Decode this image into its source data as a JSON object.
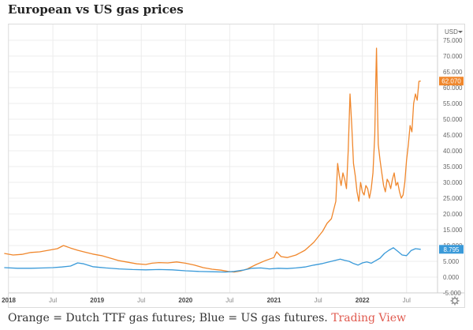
{
  "heading": "European vs US gas prices",
  "caption": {
    "text": "Orange = Dutch TTF gas futures; Blue = US gas futures.",
    "link": "Trading View"
  },
  "colors": {
    "orange": "#f0872c",
    "blue": "#3a9ad9",
    "grid": "#ececec",
    "axis_text": "#666666"
  },
  "icons": {
    "settings": "gear-icon",
    "currency_menu": "chevron-down-icon"
  },
  "chart_data": {
    "type": "line",
    "currency_label": "USD",
    "ylim": [
      -5,
      80
    ],
    "y_ticks": [
      {
        "value": 75,
        "label": "75.000"
      },
      {
        "value": 70,
        "label": "70.000"
      },
      {
        "value": 65,
        "label": "65.000"
      },
      {
        "value": 60,
        "label": "60.000"
      },
      {
        "value": 55,
        "label": "55.000"
      },
      {
        "value": 50,
        "label": "50.000"
      },
      {
        "value": 45,
        "label": "45.000"
      },
      {
        "value": 40,
        "label": "40.000"
      },
      {
        "value": 35,
        "label": "35.000"
      },
      {
        "value": 30,
        "label": "30.000"
      },
      {
        "value": 25,
        "label": "25.000"
      },
      {
        "value": 20,
        "label": "20.000"
      },
      {
        "value": 15,
        "label": "15.000"
      },
      {
        "value": 10,
        "label": "10.000"
      },
      {
        "value": 5,
        "label": "5.000"
      },
      {
        "value": 0,
        "label": "0.000"
      },
      {
        "value": -5,
        "label": "-5.000"
      }
    ],
    "xlim": [
      2018.0,
      2022.85
    ],
    "x_ticks": [
      {
        "value": 2018.0,
        "label": "2018",
        "bold": true
      },
      {
        "value": 2018.5,
        "label": "Jul",
        "bold": false
      },
      {
        "value": 2019.0,
        "label": "2019",
        "bold": true
      },
      {
        "value": 2019.5,
        "label": "Jul",
        "bold": false
      },
      {
        "value": 2020.0,
        "label": "2020",
        "bold": true
      },
      {
        "value": 2020.5,
        "label": "Jul",
        "bold": false
      },
      {
        "value": 2021.0,
        "label": "2021",
        "bold": true
      },
      {
        "value": 2021.5,
        "label": "Jul",
        "bold": false
      },
      {
        "value": 2022.0,
        "label": "2022",
        "bold": true
      },
      {
        "value": 2022.5,
        "label": "Jul",
        "bold": false
      }
    ],
    "series": [
      {
        "color": "#f0872c",
        "last_label": "62.070",
        "x": [
          2017.95,
          2018.05,
          2018.15,
          2018.25,
          2018.35,
          2018.45,
          2018.55,
          2018.62,
          2018.7,
          2018.78,
          2018.85,
          2018.95,
          2019.05,
          2019.15,
          2019.25,
          2019.35,
          2019.45,
          2019.55,
          2019.62,
          2019.7,
          2019.8,
          2019.9,
          2020.0,
          2020.1,
          2020.2,
          2020.3,
          2020.4,
          2020.48,
          2020.55,
          2020.62,
          2020.7,
          2020.8,
          2020.9,
          2021.0,
          2021.03,
          2021.08,
          2021.15,
          2021.25,
          2021.35,
          2021.45,
          2021.55,
          2021.6,
          2021.65,
          2021.7,
          2021.72,
          2021.74,
          2021.76,
          2021.78,
          2021.8,
          2021.82,
          2021.84,
          2021.86,
          2021.88,
          2021.9,
          2021.92,
          2021.94,
          2021.96,
          2021.98,
          2022.0,
          2022.02,
          2022.04,
          2022.06,
          2022.08,
          2022.1,
          2022.12,
          2022.14,
          2022.15,
          2022.16,
          2022.17,
          2022.18,
          2022.2,
          2022.22,
          2022.24,
          2022.26,
          2022.28,
          2022.3,
          2022.32,
          2022.34,
          2022.36,
          2022.38,
          2022.4,
          2022.42,
          2022.44,
          2022.46,
          2022.48,
          2022.5,
          2022.52,
          2022.54,
          2022.56,
          2022.58,
          2022.6,
          2022.62,
          2022.64,
          2022.66
        ],
        "y": [
          7.5,
          7.0,
          7.2,
          7.8,
          8.0,
          8.5,
          9.0,
          10.0,
          9.2,
          8.5,
          8.0,
          7.3,
          6.8,
          6.0,
          5.2,
          4.7,
          4.2,
          4.0,
          4.4,
          4.6,
          4.5,
          4.8,
          4.4,
          3.8,
          3.0,
          2.5,
          2.2,
          1.8,
          1.6,
          1.9,
          2.6,
          4.0,
          5.2,
          6.2,
          8.0,
          6.5,
          6.2,
          7.0,
          8.5,
          11.0,
          14.5,
          17.0,
          18.5,
          24.0,
          36.0,
          32.0,
          29.0,
          33.0,
          31.0,
          28.0,
          40.0,
          58.0,
          48.0,
          36.0,
          32.0,
          27.0,
          24.0,
          30.0,
          27.0,
          26.0,
          29.0,
          28.0,
          25.0,
          28.0,
          33.0,
          45.0,
          60.0,
          72.5,
          56.0,
          42.0,
          37.0,
          33.0,
          29.0,
          27.0,
          31.0,
          30.0,
          28.0,
          31.0,
          33.0,
          29.0,
          30.0,
          27.0,
          25.0,
          26.0,
          30.0,
          37.0,
          42.0,
          48.0,
          46.0,
          55.0,
          58.0,
          56.0,
          62.0,
          62.07
        ]
      },
      {
        "color": "#3a9ad9",
        "last_label": "8.795",
        "x": [
          2017.95,
          2018.1,
          2018.25,
          2018.4,
          2018.5,
          2018.6,
          2018.7,
          2018.78,
          2018.85,
          2018.95,
          2019.1,
          2019.25,
          2019.4,
          2019.55,
          2019.7,
          2019.85,
          2020.0,
          2020.15,
          2020.3,
          2020.45,
          2020.55,
          2020.65,
          2020.75,
          2020.85,
          2020.95,
          2021.05,
          2021.15,
          2021.25,
          2021.35,
          2021.45,
          2021.55,
          2021.65,
          2021.75,
          2021.8,
          2021.85,
          2021.9,
          2021.95,
          2022.0,
          2022.05,
          2022.1,
          2022.15,
          2022.2,
          2022.25,
          2022.3,
          2022.35,
          2022.4,
          2022.45,
          2022.5,
          2022.55,
          2022.6,
          2022.66
        ],
        "y": [
          3.0,
          2.8,
          2.8,
          2.9,
          3.0,
          3.2,
          3.5,
          4.5,
          4.2,
          3.3,
          2.9,
          2.6,
          2.4,
          2.3,
          2.4,
          2.3,
          2.0,
          1.8,
          1.7,
          1.6,
          1.8,
          2.2,
          2.8,
          2.9,
          2.6,
          2.8,
          2.7,
          2.9,
          3.2,
          3.8,
          4.3,
          5.0,
          5.7,
          5.3,
          5.0,
          4.3,
          3.8,
          4.5,
          4.8,
          4.4,
          5.2,
          6.0,
          7.5,
          8.5,
          9.3,
          8.2,
          7.0,
          6.8,
          8.4,
          9.0,
          8.8
        ]
      }
    ]
  }
}
